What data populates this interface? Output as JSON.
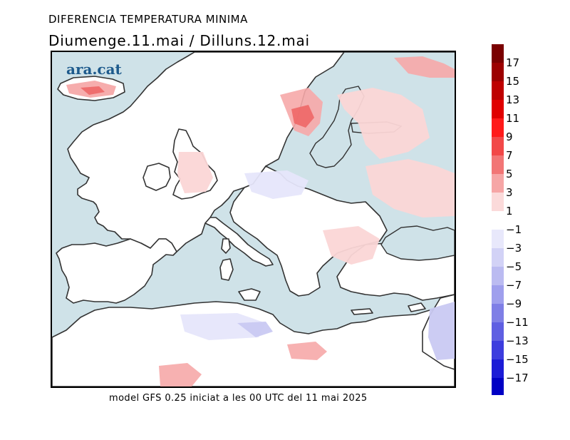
{
  "header": {
    "title": "DIFERENCIA TEMPERATURA MINIMA",
    "subtitle": "Diumenge.11.mai  /  Dilluns.12.mai"
  },
  "map": {
    "brand": "ara.cat",
    "colors": {
      "sea": "#cfe2e8",
      "land_neutral": "#ffffff",
      "warm_light": "#fbd6d6",
      "warm_mid": "#f6a9a9",
      "warm_strong": "#ee6767",
      "cold_light": "#e6e6fb",
      "cold_mid": "#c9c9f2",
      "coast": "#333333"
    }
  },
  "caption": "model GFS 0.25 iniciat a les 00 UTC del 11 mai 2025",
  "colorbar": {
    "labels": [
      "17",
      "15",
      "13",
      "11",
      "9",
      "7",
      "5",
      "3",
      "1",
      "−1",
      "−3",
      "−5",
      "−7",
      "−9",
      "−11",
      "−13",
      "−15",
      "−17"
    ],
    "colors": [
      "#7a0000",
      "#9c0000",
      "#be0000",
      "#e00000",
      "#ff1a1a",
      "#f24848",
      "#f27676",
      "#f6a6a6",
      "#fbdada",
      "#ffffff",
      "#e8e8fb",
      "#d2d2f6",
      "#bbbbf1",
      "#9f9fed",
      "#7f7fe6",
      "#5f5fe2",
      "#3d3dde",
      "#1c1cd6",
      "#0000c4"
    ]
  }
}
